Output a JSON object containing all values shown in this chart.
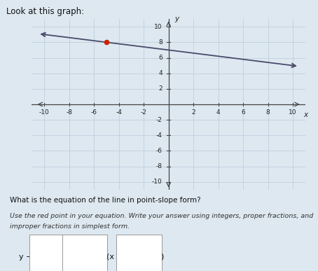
{
  "title": "Look at this graph:",
  "red_point": [
    -5,
    8
  ],
  "slope_num": -1,
  "slope_den": 5,
  "y_intercept": 7,
  "x_line_start": -10,
  "x_line_end": 10,
  "xlim": [
    -11,
    11
  ],
  "ylim": [
    -11,
    11
  ],
  "xticks": [
    -10,
    -8,
    -6,
    -4,
    -2,
    2,
    4,
    6,
    8,
    10
  ],
  "yticks": [
    -10,
    -8,
    -6,
    -4,
    -2,
    2,
    4,
    6,
    8,
    10
  ],
  "line_color": "#4a4a6a",
  "red_point_color": "#cc2200",
  "grid_color": "#c0d0df",
  "bg_color": "#dde8f0",
  "axis_color": "#444444",
  "question_text": "What is the equation of the line in point-slope form?",
  "instruction_text": "Use the red point in your equation. Write your answer using integers, proper fractions, and",
  "instruction_text2": "improper fractions in simplest form.",
  "xlabel": "x",
  "ylabel": "y",
  "title_fontsize": 8.5,
  "label_fontsize": 7.5,
  "tick_fontsize": 6.5
}
